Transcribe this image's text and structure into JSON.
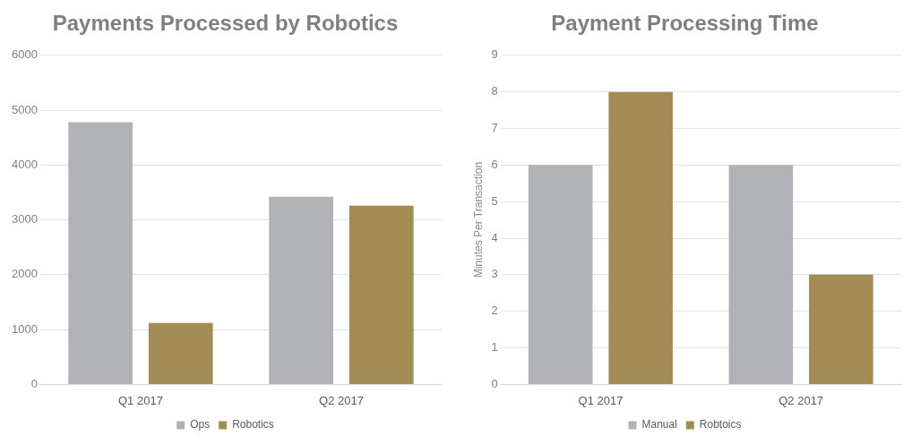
{
  "chart_data": [
    {
      "type": "bar",
      "title": "Payments Processed by Robotics",
      "categories": [
        "Q1 2017",
        "Q2 2017"
      ],
      "series": [
        {
          "name": "Ops",
          "color": "#b1b2b6",
          "values": [
            4780,
            3420
          ]
        },
        {
          "name": "Robotics",
          "color": "#a38b55",
          "values": [
            1120,
            3260
          ]
        }
      ],
      "ylim": [
        0,
        6000
      ],
      "yticks": [
        0,
        1000,
        2000,
        3000,
        4000,
        5000,
        6000
      ],
      "grid": "y",
      "legend": "bottom"
    },
    {
      "type": "bar",
      "title": "Payment Processing Time",
      "ylabel": "Minutes Per Transaction",
      "categories": [
        "Q1 2017",
        "Q2 2017"
      ],
      "series": [
        {
          "name": "Manual",
          "color": "#b1b2b6",
          "values": [
            6,
            6
          ]
        },
        {
          "name": "Robtoics",
          "color": "#a38b55",
          "values": [
            8,
            3
          ]
        }
      ],
      "ylim": [
        0,
        9
      ],
      "yticks": [
        0,
        1,
        2,
        3,
        4,
        5,
        6,
        7,
        8,
        9
      ],
      "grid": "y",
      "legend": "bottom"
    }
  ]
}
